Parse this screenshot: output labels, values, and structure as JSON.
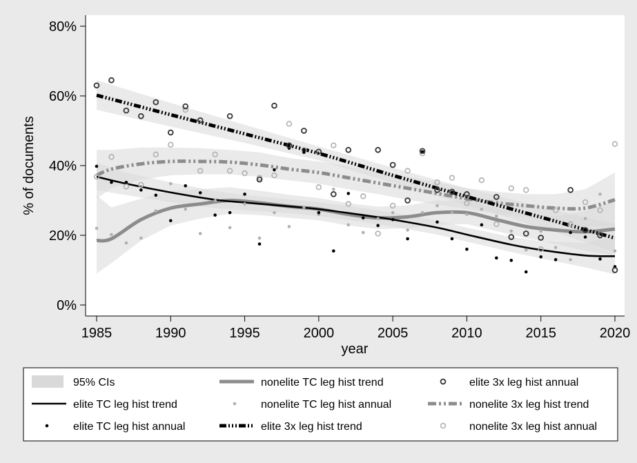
{
  "chart_data": {
    "type": "scatter",
    "xlabel": "year",
    "ylabel": "% of documents",
    "xlim": [
      1985,
      2020
    ],
    "ylim": [
      0,
      80
    ],
    "x_ticks": [
      "1985",
      "1990",
      "1995",
      "2000",
      "2005",
      "2010",
      "2015",
      "2020"
    ],
    "y_ticks": [
      "0%",
      "20%",
      "40%",
      "60%",
      "80%"
    ],
    "grid": false,
    "legend_position": "bottom",
    "colors": {
      "elite": "#000000",
      "elite_3x_markers": "#3a3a3a",
      "nonelite_dark": "#8c8c8c",
      "nonelite_light": "#b0b0b0",
      "ci_band": "#d9d9d9"
    },
    "legend": [
      "95% CIs",
      "nonelite TC leg hist trend",
      "elite 3x leg hist annual",
      "elite TC leg hist trend",
      "nonelite TC leg hist annual",
      "nonelite 3x leg hist trend",
      "elite TC leg hist annual",
      "elite 3x leg hist trend",
      "nonelite 3x leg hist annual"
    ],
    "series": [
      {
        "name": "elite 3x leg hist annual",
        "kind": "points-hollow",
        "x": [
          1985,
          1986,
          1987,
          1988,
          1989,
          1990,
          1991,
          1992,
          1994,
          1996,
          1997,
          1998,
          1999,
          2000,
          2001,
          2002,
          2004,
          2005,
          2006,
          2007,
          2008,
          2009,
          2010,
          2012,
          2013,
          2014,
          2015,
          2017,
          2018,
          2019,
          2020
        ],
        "y": [
          63,
          64.5,
          55.8,
          54.2,
          58.2,
          49.5,
          57,
          53,
          54.2,
          36,
          57.2,
          45.8,
          50,
          44,
          31.8,
          44.5,
          44.5,
          40.2,
          30,
          44.2,
          33,
          32.5,
          31.8,
          31,
          19.5,
          20.5,
          19.3,
          33,
          21.5,
          20,
          10
        ]
      },
      {
        "name": "nonelite 3x leg hist annual",
        "kind": "points-hollow",
        "x": [
          1985,
          1986,
          1987,
          1988,
          1989,
          1990,
          1991,
          1992,
          1993,
          1994,
          1995,
          1996,
          1997,
          1998,
          1999,
          2000,
          2001,
          2002,
          2003,
          2004,
          2005,
          2006,
          2007,
          2008,
          2009,
          2010,
          2011,
          2012,
          2013,
          2014,
          2015,
          2016,
          2017,
          2018,
          2019,
          2020
        ],
        "y": [
          36.8,
          42.5,
          34,
          34.5,
          43.2,
          46,
          56,
          38.5,
          43.2,
          38.5,
          37.8,
          36.5,
          37.2,
          52,
          44.5,
          33.8,
          45.8,
          29,
          31.2,
          20.5,
          28.5,
          38.5,
          43.5,
          35.2,
          36.5,
          29.2,
          35.8,
          23.2,
          33.5,
          33,
          16,
          27.2,
          23.2,
          29.5,
          27.2,
          46.2
        ]
      },
      {
        "name": "elite TC leg hist annual",
        "kind": "dots",
        "x": [
          1985,
          1986,
          1987,
          1988,
          1989,
          1990,
          1991,
          1992,
          1993,
          1994,
          1995,
          1996,
          1997,
          1998,
          1999,
          2000,
          2001,
          2002,
          2003,
          2004,
          2005,
          2006,
          2007,
          2008,
          2009,
          2010,
          2011,
          2012,
          2013,
          2014,
          2015,
          2016,
          2017,
          2018,
          2019,
          2020
        ],
        "y": [
          39.8,
          35.2,
          35.2,
          33,
          31.5,
          24.2,
          34.2,
          32.2,
          25.8,
          26.5,
          31.8,
          17.5,
          38.8,
          45,
          43.8,
          26.5,
          15.5,
          32,
          25,
          22.8,
          24.5,
          19,
          44,
          23.8,
          19,
          16,
          23,
          13.5,
          12.8,
          9.5,
          13.8,
          13,
          20.8,
          19.5,
          13.2,
          11
        ]
      },
      {
        "name": "nonelite TC leg hist annual",
        "kind": "dots",
        "x": [
          1985,
          1986,
          1987,
          1988,
          1989,
          1990,
          1991,
          1992,
          1993,
          1994,
          1995,
          1996,
          1997,
          1998,
          1999,
          2000,
          2001,
          2002,
          2003,
          2004,
          2005,
          2006,
          2007,
          2008,
          2009,
          2010,
          2011,
          2012,
          2013,
          2014,
          2015,
          2016,
          2017,
          2018,
          2019,
          2020
        ],
        "y": [
          22,
          20.2,
          17.8,
          19.2,
          27,
          34.8,
          27.5,
          20.5,
          30,
          22.2,
          29,
          19.2,
          26.5,
          22.5,
          28,
          26,
          33.2,
          23,
          20.8,
          24.8,
          26.5,
          21.5,
          26.5,
          28.5,
          26.5,
          26,
          27.5,
          25.5,
          21.2,
          15.8,
          21.2,
          16.5,
          13,
          24.8,
          31.8,
          15.5
        ]
      },
      {
        "name": "elite TC leg hist trend",
        "kind": "line",
        "x": [
          1985,
          1987,
          1990,
          1993,
          1995,
          1998,
          2000,
          2003,
          2005,
          2008,
          2010,
          2013,
          2015,
          2018,
          2020
        ],
        "y": [
          36.8,
          34.8,
          32.3,
          30.2,
          29.4,
          28.3,
          27.5,
          25.8,
          24.5,
          22.2,
          20.2,
          17.3,
          15.8,
          14.2,
          14
        ],
        "ci_low": [
          33,
          31.5,
          29.5,
          27.8,
          27.2,
          26.3,
          25.5,
          23.8,
          22.5,
          20.2,
          18.2,
          15.2,
          13.4,
          10.8,
          8.8
        ],
        "ci_high": [
          40.8,
          38,
          35.2,
          32.7,
          31.6,
          30.3,
          29.5,
          27.8,
          26.5,
          24.2,
          22.2,
          19.5,
          18.3,
          17.8,
          19.5
        ]
      },
      {
        "name": "nonelite TC leg hist trend",
        "kind": "line",
        "x": [
          1985,
          1986,
          1988,
          1990,
          1992,
          1994,
          1996,
          1998,
          2000,
          2002,
          2004,
          2006,
          2008,
          2010,
          2012,
          2014,
          2016,
          2018,
          2020
        ],
        "y": [
          18.5,
          19,
          24.5,
          27.8,
          29,
          30,
          29.3,
          28.3,
          27.5,
          26,
          25,
          25.3,
          26.5,
          26.5,
          24.5,
          22.5,
          21.5,
          21,
          21.8
        ],
        "ci_low": [
          9,
          12,
          18.5,
          22.8,
          24.8,
          26.2,
          25.8,
          25,
          24.3,
          22.8,
          21.8,
          22,
          23,
          23.2,
          21.2,
          19.2,
          17.5,
          15.5,
          14.2
        ],
        "ci_high": [
          31.5,
          28,
          30.5,
          32.8,
          33.2,
          33.8,
          32.8,
          31.6,
          30.7,
          29.2,
          28.2,
          28.6,
          30,
          29.8,
          27.8,
          25.8,
          25.5,
          27,
          30
        ]
      },
      {
        "name": "elite 3x leg hist trend",
        "kind": "line",
        "x": [
          1985,
          1990,
          1995,
          2000,
          2005,
          2010,
          2015,
          2020
        ],
        "y": [
          60.2,
          54.6,
          49.1,
          43.5,
          37.2,
          31.1,
          25.2,
          19.2
        ],
        "ci_low": [
          56,
          51.2,
          46.5,
          41.5,
          35,
          28.7,
          22.2,
          15.2
        ],
        "ci_high": [
          64.5,
          58,
          51.7,
          45.5,
          39.4,
          33.5,
          28.2,
          23.2
        ]
      },
      {
        "name": "nonelite 3x leg hist trend",
        "kind": "line",
        "x": [
          1985,
          1986,
          1988,
          1990,
          1992,
          1994,
          1996,
          1998,
          2000,
          2002,
          2004,
          2006,
          2008,
          2010,
          2012,
          2014,
          2016,
          2018,
          2020
        ],
        "y": [
          37.2,
          39,
          40.5,
          41.2,
          41.2,
          41,
          40.2,
          39,
          38,
          36.5,
          35,
          33.5,
          32,
          30.5,
          29.3,
          28.5,
          27.8,
          27.8,
          30.2
        ],
        "ci_low": [
          30.5,
          33.5,
          36,
          37.2,
          37.5,
          37.5,
          36.8,
          35.8,
          34.8,
          33.2,
          31.8,
          30.2,
          28.8,
          27.5,
          26.2,
          25.2,
          24,
          22.5,
          22.5
        ],
        "ci_high": [
          44.5,
          44.5,
          45.2,
          45.2,
          45,
          44.5,
          43.8,
          42.2,
          41.2,
          39.8,
          38.2,
          36.8,
          35.2,
          33.5,
          32.5,
          31.8,
          31.8,
          33.2,
          38
        ]
      }
    ]
  }
}
